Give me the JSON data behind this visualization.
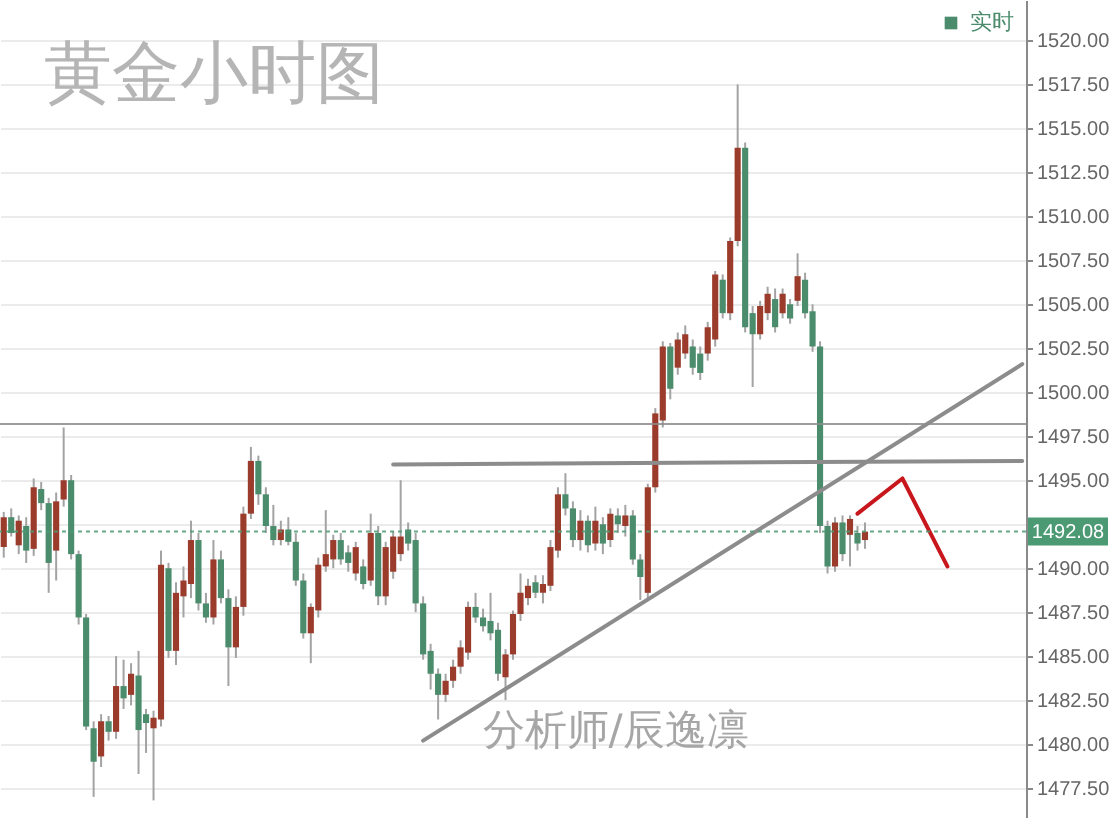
{
  "chart_data": {
    "type": "candlestick",
    "title": "黄金小时图",
    "annotations": [
      "分析师/辰逸凛"
    ],
    "categories": [
      null,
      null,
      null,
      null,
      null,
      null,
      null,
      null,
      null,
      null,
      null,
      null,
      null,
      null,
      null,
      null,
      null,
      null,
      null,
      null,
      null,
      null,
      null,
      null,
      null,
      null,
      null,
      null,
      null,
      null,
      null,
      null,
      null,
      null,
      null,
      null,
      null,
      null,
      null,
      null,
      null,
      null,
      null,
      null,
      null,
      null,
      null,
      null,
      null,
      null,
      null,
      null,
      null,
      null,
      null,
      null,
      null,
      null,
      null,
      null,
      null,
      null,
      null,
      null,
      null,
      null,
      null,
      null,
      null,
      null,
      null,
      null,
      null,
      null,
      null,
      null,
      null,
      null,
      null,
      null,
      null,
      null,
      null,
      null,
      null,
      null,
      null,
      null,
      null,
      null,
      null,
      null,
      null,
      null,
      null,
      null,
      null,
      null,
      null,
      null,
      null,
      null,
      null,
      null,
      null,
      null,
      null,
      null,
      null,
      null,
      null,
      null,
      null,
      null,
      null,
      null,
      null,
      null,
      null,
      null,
      null,
      null,
      null,
      null,
      null,
      null,
      null,
      null,
      null,
      null,
      null,
      null,
      null,
      null,
      null,
      null,
      null
    ],
    "ylim": [
      1475.8,
      1522.3
    ],
    "yticks": [
      {
        "value": 1477.5,
        "label": "1477.50"
      },
      {
        "value": 1480,
        "label": "1480.00"
      },
      {
        "value": 1482.5,
        "label": "1482.50"
      },
      {
        "value": 1485,
        "label": "1485.00"
      },
      {
        "value": 1487.5,
        "label": "1487.50"
      },
      {
        "value": 1490,
        "label": "1490.00"
      },
      {
        "value": 1492.5,
        "label": null
      },
      {
        "value": 1495,
        "label": "1495.00"
      },
      {
        "value": 1497.5,
        "label": "1497.50"
      },
      {
        "value": 1500,
        "label": "1500.00"
      },
      {
        "value": 1502.5,
        "label": "1502.50"
      },
      {
        "value": 1505,
        "label": "1505.00"
      },
      {
        "value": 1507.5,
        "label": "1507.50"
      },
      {
        "value": 1510,
        "label": "1510.00"
      },
      {
        "value": 1512.5,
        "label": "1512.50"
      },
      {
        "value": 1515,
        "label": "1515.00"
      },
      {
        "value": 1517.5,
        "label": "1517.50"
      },
      {
        "value": 1520,
        "label": "1520.00"
      }
    ],
    "grid": "y",
    "legend": "top right",
    "tick_labels": "y",
    "series": [
      {
        "name": "实时",
        "color": "#4a8c6c",
        "ohlc": [
          [
            1491.2,
            1493.2,
            1490.6,
            1492.9
          ],
          [
            1492.9,
            1493.4,
            1491.8,
            1492.0
          ],
          [
            1491.3,
            1493.0,
            1490.8,
            1492.7
          ],
          [
            1492.4,
            1492.9,
            1490.3,
            1491.0
          ],
          [
            1491.1,
            1495.1,
            1490.7,
            1494.6
          ],
          [
            1494.5,
            1494.9,
            1493.3,
            1493.7
          ],
          [
            1493.7,
            1494.0,
            1488.6,
            1490.3
          ],
          [
            1491.0,
            1494.3,
            1489.3,
            1493.8
          ],
          [
            1493.9,
            1498.0,
            1493.5,
            1495.0
          ],
          [
            1495.0,
            1495.3,
            1490.5,
            1490.8
          ],
          [
            1490.8,
            1491.0,
            1486.8,
            1487.2
          ],
          [
            1487.2,
            1487.4,
            1480.8,
            1481.0
          ],
          [
            1480.9,
            1481.3,
            1477.0,
            1479.0
          ],
          [
            1479.3,
            1481.7,
            1478.7,
            1481.3
          ],
          [
            1481.3,
            1481.6,
            1480.2,
            1480.7
          ],
          [
            1480.7,
            1485.0,
            1480.3,
            1483.3
          ],
          [
            1483.3,
            1484.8,
            1482.0,
            1482.6
          ],
          [
            1482.8,
            1484.6,
            1482.2,
            1484.0
          ],
          [
            1483.9,
            1485.3,
            1478.3,
            1480.8
          ],
          [
            1481.7,
            1482.0,
            1479.5,
            1481.2
          ],
          [
            1480.9,
            1481.9,
            1476.8,
            1481.5
          ],
          [
            1481.4,
            1491.0,
            1481.0,
            1490.2
          ],
          [
            1490.0,
            1490.3,
            1484.9,
            1485.3
          ],
          [
            1485.3,
            1489.2,
            1484.5,
            1488.6
          ],
          [
            1488.4,
            1490.1,
            1487.2,
            1489.3
          ],
          [
            1489.1,
            1492.7,
            1488.3,
            1491.6
          ],
          [
            1491.6,
            1492.0,
            1487.6,
            1488.0
          ],
          [
            1488.0,
            1488.6,
            1486.9,
            1487.2
          ],
          [
            1487.2,
            1491.6,
            1486.8,
            1490.5
          ],
          [
            1490.5,
            1491.0,
            1488.0,
            1488.3
          ],
          [
            1488.3,
            1488.8,
            1483.3,
            1485.5
          ],
          [
            1485.5,
            1488.4,
            1484.9,
            1487.8
          ],
          [
            1487.8,
            1493.5,
            1487.3,
            1493.1
          ],
          [
            1493.1,
            1496.9,
            1492.8,
            1496.1
          ],
          [
            1496.1,
            1496.4,
            1493.6,
            1494.2
          ],
          [
            1494.2,
            1494.6,
            1492.0,
            1492.4
          ],
          [
            1492.4,
            1493.6,
            1491.3,
            1491.6
          ],
          [
            1491.6,
            1492.7,
            1491.3,
            1492.2
          ],
          [
            1492.2,
            1492.9,
            1491.3,
            1491.5
          ],
          [
            1491.5,
            1492.0,
            1489.0,
            1489.3
          ],
          [
            1489.3,
            1489.7,
            1486.0,
            1486.3
          ],
          [
            1486.3,
            1488.0,
            1484.6,
            1487.8
          ],
          [
            1487.6,
            1490.6,
            1487.2,
            1490.2
          ],
          [
            1490.1,
            1493.3,
            1489.8,
            1490.8
          ],
          [
            1490.5,
            1491.9,
            1490.0,
            1491.6
          ],
          [
            1491.6,
            1492.0,
            1490.2,
            1490.5
          ],
          [
            1490.9,
            1491.3,
            1489.8,
            1490.3
          ],
          [
            1489.7,
            1491.5,
            1489.3,
            1491.2
          ],
          [
            1490.1,
            1490.5,
            1488.8,
            1489.1
          ],
          [
            1489.3,
            1493.1,
            1489.0,
            1492.0
          ],
          [
            1492.0,
            1492.4,
            1487.9,
            1488.4
          ],
          [
            1488.4,
            1491.5,
            1487.9,
            1491.2
          ],
          [
            1489.8,
            1492.1,
            1489.4,
            1491.8
          ],
          [
            1490.8,
            1495.0,
            1490.4,
            1491.8
          ],
          [
            1492.2,
            1492.6,
            1491.0,
            1491.4
          ],
          [
            1491.6,
            1492.0,
            1487.5,
            1488.0
          ],
          [
            1488.0,
            1488.4,
            1484.8,
            1485.1
          ],
          [
            1485.3,
            1485.7,
            1483.1,
            1484.0
          ],
          [
            1484.0,
            1484.3,
            1481.4,
            1482.8
          ],
          [
            1482.8,
            1484.0,
            1482.4,
            1483.6
          ],
          [
            1483.6,
            1484.8,
            1483.2,
            1484.4
          ],
          [
            1484.4,
            1485.9,
            1484.0,
            1485.5
          ],
          [
            1485.2,
            1488.1,
            1484.8,
            1487.8
          ],
          [
            1487.8,
            1488.6,
            1486.9,
            1487.2
          ],
          [
            1487.2,
            1487.7,
            1486.4,
            1486.7
          ],
          [
            1487.0,
            1488.6,
            1485.9,
            1486.3
          ],
          [
            1486.5,
            1486.9,
            1483.6,
            1484.0
          ],
          [
            1483.8,
            1485.4,
            1482.5,
            1485.1
          ],
          [
            1485.1,
            1487.6,
            1484.8,
            1487.4
          ],
          [
            1487.4,
            1489.7,
            1487.0,
            1488.6
          ],
          [
            1488.3,
            1489.4,
            1487.9,
            1489.0
          ],
          [
            1489.2,
            1489.6,
            1488.3,
            1488.6
          ],
          [
            1488.6,
            1489.6,
            1488.0,
            1489.1
          ],
          [
            1489.0,
            1491.6,
            1488.7,
            1491.2
          ],
          [
            1491.0,
            1494.6,
            1490.6,
            1494.2
          ],
          [
            1494.2,
            1495.4,
            1493.0,
            1493.4
          ],
          [
            1493.4,
            1493.8,
            1491.2,
            1491.6
          ],
          [
            1491.6,
            1493.3,
            1491.0,
            1492.7
          ],
          [
            1492.7,
            1493.0,
            1490.9,
            1491.3
          ],
          [
            1491.4,
            1493.5,
            1491.0,
            1492.7
          ],
          [
            1492.5,
            1492.9,
            1490.8,
            1491.4
          ],
          [
            1491.6,
            1493.4,
            1491.2,
            1493.1
          ],
          [
            1493.0,
            1493.4,
            1492.0,
            1492.5
          ],
          [
            1492.4,
            1493.6,
            1491.8,
            1493.0
          ],
          [
            1493.0,
            1493.3,
            1490.2,
            1490.5
          ],
          [
            1490.5,
            1490.8,
            1488.2,
            1489.5
          ],
          [
            1488.6,
            1494.8,
            1488.3,
            1494.6
          ],
          [
            1494.6,
            1499.1,
            1494.3,
            1498.8
          ],
          [
            1498.4,
            1502.9,
            1498.0,
            1502.6
          ],
          [
            1502.6,
            1502.8,
            1499.6,
            1500.2
          ],
          [
            1501.4,
            1503.4,
            1501.0,
            1503.0
          ],
          [
            1502.2,
            1503.8,
            1501.9,
            1503.3
          ],
          [
            1502.6,
            1503.0,
            1501.0,
            1501.4
          ],
          [
            1502.2,
            1502.6,
            1500.7,
            1501.1
          ],
          [
            1502.2,
            1504.0,
            1501.8,
            1503.7
          ],
          [
            1503.0,
            1506.9,
            1502.6,
            1506.7
          ],
          [
            1506.4,
            1506.7,
            1504.2,
            1504.5
          ],
          [
            1504.5,
            1508.8,
            1504.1,
            1508.6
          ],
          [
            1508.6,
            1517.5,
            1508.3,
            1513.9
          ],
          [
            1513.9,
            1514.2,
            1503.4,
            1503.7
          ],
          [
            1504.5,
            1504.9,
            1500.3,
            1503.3
          ],
          [
            1503.3,
            1505.2,
            1503.0,
            1504.9
          ],
          [
            1504.5,
            1506.0,
            1504.1,
            1505.6
          ],
          [
            1505.3,
            1505.9,
            1503.4,
            1503.7
          ],
          [
            1504.5,
            1505.9,
            1504.2,
            1505.6
          ],
          [
            1505.0,
            1505.3,
            1503.9,
            1504.2
          ],
          [
            1505.2,
            1507.9,
            1504.9,
            1506.6
          ],
          [
            1506.4,
            1506.8,
            1504.2,
            1504.5
          ],
          [
            1504.6,
            1505.0,
            1502.3,
            1502.6
          ],
          [
            1502.6,
            1502.9,
            1492.0,
            1492.4
          ],
          [
            1492.4,
            1492.7,
            1489.7,
            1490.1
          ],
          [
            1490.1,
            1492.9,
            1489.8,
            1492.6
          ],
          [
            1492.6,
            1493.0,
            1490.4,
            1490.8
          ],
          [
            1491.9,
            1493.0,
            1490.1,
            1492.8
          ],
          [
            1492.0,
            1492.4,
            1491.0,
            1491.4
          ],
          [
            1491.6,
            1492.6,
            1491.1,
            1492.08
          ],
          null,
          null,
          null,
          null,
          null,
          null,
          null,
          null,
          null,
          null,
          null,
          null,
          null,
          null,
          null,
          null,
          null,
          null,
          null,
          null,
          null
        ],
        "colors": [
          "#9b3b2b",
          "#4a8c6c",
          "#9b3b2b",
          "#4a8c6c",
          "#9b3b2b",
          "#4a8c6c",
          "#4a8c6c",
          "#9b3b2b",
          "#9b3b2b",
          "#4a8c6c",
          "#4a8c6c",
          "#4a8c6c",
          "#4a8c6c",
          "#9b3b2b",
          "#4a8c6c",
          "#9b3b2b",
          "#4a8c6c",
          "#9b3b2b",
          "#4a8c6c",
          "#4a8c6c",
          "#9b3b2b",
          "#9b3b2b",
          "#4a8c6c",
          "#9b3b2b",
          "#9b3b2b",
          "#9b3b2b",
          "#4a8c6c",
          "#4a8c6c",
          "#9b3b2b",
          "#4a8c6c",
          "#4a8c6c",
          "#9b3b2b",
          "#9b3b2b",
          "#9b3b2b",
          "#4a8c6c",
          "#4a8c6c",
          "#4a8c6c",
          "#9b3b2b",
          "#4a8c6c",
          "#4a8c6c",
          "#4a8c6c",
          "#9b3b2b",
          "#9b3b2b",
          "#9b3b2b",
          "#9b3b2b",
          "#4a8c6c",
          "#4a8c6c",
          "#9b3b2b",
          "#4a8c6c",
          "#9b3b2b",
          "#4a8c6c",
          "#9b3b2b",
          "#9b3b2b",
          "#9b3b2b",
          "#4a8c6c",
          "#4a8c6c",
          "#4a8c6c",
          "#4a8c6c",
          "#4a8c6c",
          "#9b3b2b",
          "#9b3b2b",
          "#9b3b2b",
          "#9b3b2b",
          "#4a8c6c",
          "#4a8c6c",
          "#4a8c6c",
          "#4a8c6c",
          "#9b3b2b",
          "#9b3b2b",
          "#9b3b2b",
          "#9b3b2b",
          "#4a8c6c",
          "#9b3b2b",
          "#9b3b2b",
          "#9b3b2b",
          "#4a8c6c",
          "#4a8c6c",
          "#9b3b2b",
          "#4a8c6c",
          "#9b3b2b",
          "#4a8c6c",
          "#9b3b2b",
          "#4a8c6c",
          "#9b3b2b",
          "#4a8c6c",
          "#4a8c6c",
          "#9b3b2b",
          "#9b3b2b",
          "#9b3b2b",
          "#4a8c6c",
          "#9b3b2b",
          "#9b3b2b",
          "#4a8c6c",
          "#4a8c6c",
          "#9b3b2b",
          "#9b3b2b",
          "#4a8c6c",
          "#9b3b2b",
          "#9b3b2b",
          "#4a8c6c",
          "#4a8c6c",
          "#9b3b2b",
          "#9b3b2b",
          "#4a8c6c",
          "#9b3b2b",
          "#4a8c6c",
          "#9b3b2b",
          "#4a8c6c",
          "#4a8c6c",
          "#4a8c6c",
          "#4a8c6c",
          "#9b3b2b",
          "#4a8c6c",
          "#9b3b2b",
          "#4a8c6c",
          "#9b3b2b",
          null,
          null,
          null,
          null,
          null,
          null,
          null,
          null,
          null,
          null,
          null,
          null,
          null,
          null,
          null,
          null,
          null,
          null,
          null,
          null,
          null
        ]
      },
      {
        "type": "line",
        "color": "#8c8c8c",
        "values": [
          null,
          null,
          null,
          null,
          null,
          null,
          null,
          null,
          null,
          null,
          null,
          null,
          null,
          null,
          null,
          null,
          null,
          null,
          null,
          null,
          null,
          null,
          null,
          null,
          null,
          null,
          null,
          null,
          null,
          null,
          null,
          null,
          null,
          null,
          null,
          null,
          null,
          null,
          null,
          null,
          null,
          null,
          null,
          null,
          null,
          null,
          null,
          null,
          null,
          null,
          null,
          null,
          null,
          null,
          null,
          null,
          1480.2,
          null,
          null,
          null,
          null,
          null,
          null,
          null,
          null,
          null,
          null,
          null,
          null,
          null,
          null,
          null,
          null,
          null,
          null,
          null,
          null,
          null,
          null,
          null,
          null,
          null,
          null,
          null,
          null,
          null,
          null,
          null,
          null,
          null,
          null,
          null,
          null,
          null,
          null,
          null,
          null,
          null,
          null,
          null,
          null,
          null,
          null,
          null,
          null,
          null,
          null,
          null,
          null,
          null,
          null,
          null,
          null,
          null,
          null,
          null,
          null,
          null,
          null,
          null,
          null,
          null,
          null,
          null,
          null,
          null,
          null,
          null,
          null,
          null,
          null,
          null,
          null,
          null,
          null,
          null,
          1501.6
        ]
      },
      {
        "type": "line",
        "color": "#8c8c8c",
        "values": [
          null,
          null,
          null,
          null,
          null,
          null,
          null,
          null,
          null,
          null,
          null,
          null,
          null,
          null,
          null,
          null,
          null,
          null,
          null,
          null,
          null,
          null,
          null,
          null,
          null,
          null,
          null,
          null,
          null,
          null,
          null,
          null,
          null,
          null,
          null,
          null,
          null,
          null,
          null,
          null,
          null,
          null,
          null,
          null,
          null,
          null,
          null,
          null,
          null,
          null,
          null,
          null,
          1495.9,
          null,
          null,
          null,
          null,
          null,
          null,
          null,
          null,
          null,
          null,
          null,
          null,
          null,
          null,
          null,
          null,
          null,
          null,
          null,
          null,
          null,
          null,
          null,
          null,
          null,
          null,
          null,
          null,
          null,
          null,
          null,
          null,
          null,
          null,
          null,
          null,
          null,
          null,
          null,
          null,
          null,
          null,
          null,
          null,
          null,
          null,
          null,
          null,
          null,
          null,
          null,
          null,
          null,
          null,
          null,
          null,
          null,
          null,
          null,
          null,
          null,
          null,
          null,
          null,
          null,
          null,
          null,
          null,
          null,
          null,
          null,
          null,
          null,
          null,
          null,
          null,
          null,
          null,
          null,
          null,
          null,
          null,
          null,
          1496.1
        ]
      },
      {
        "type": "line",
        "color": "#c8161d",
        "values": [
          null,
          null,
          null,
          null,
          null,
          null,
          null,
          null,
          null,
          null,
          null,
          null,
          null,
          null,
          null,
          null,
          null,
          null,
          null,
          null,
          null,
          null,
          null,
          null,
          null,
          null,
          null,
          null,
          null,
          null,
          null,
          null,
          null,
          null,
          null,
          null,
          null,
          null,
          null,
          null,
          null,
          null,
          null,
          null,
          null,
          null,
          null,
          null,
          null,
          null,
          null,
          null,
          null,
          null,
          null,
          null,
          null,
          null,
          null,
          null,
          null,
          null,
          null,
          null,
          null,
          null,
          null,
          null,
          null,
          null,
          null,
          null,
          null,
          null,
          null,
          null,
          null,
          null,
          null,
          null,
          null,
          null,
          null,
          null,
          null,
          null,
          null,
          null,
          null,
          null,
          null,
          null,
          null,
          null,
          null,
          null,
          null,
          null,
          null,
          null,
          null,
          null,
          null,
          null,
          null,
          null,
          null,
          null,
          null,
          null,
          null,
          null,
          null,
          null,
          1493.1,
          null,
          null,
          null,
          null,
          null,
          1495.1,
          null,
          null,
          null,
          null,
          null,
          1490.1,
          null,
          null,
          null,
          null,
          null,
          null,
          null,
          null,
          null,
          null
        ]
      }
    ],
    "ref_lines": [
      {
        "axis": "y",
        "value": 1498.2,
        "color": "#8c8c8c"
      },
      {
        "axis": "y",
        "value": 1492.08,
        "label": "1492.08",
        "color": "#4c9a74",
        "line_style": "dotted"
      }
    ]
  }
}
